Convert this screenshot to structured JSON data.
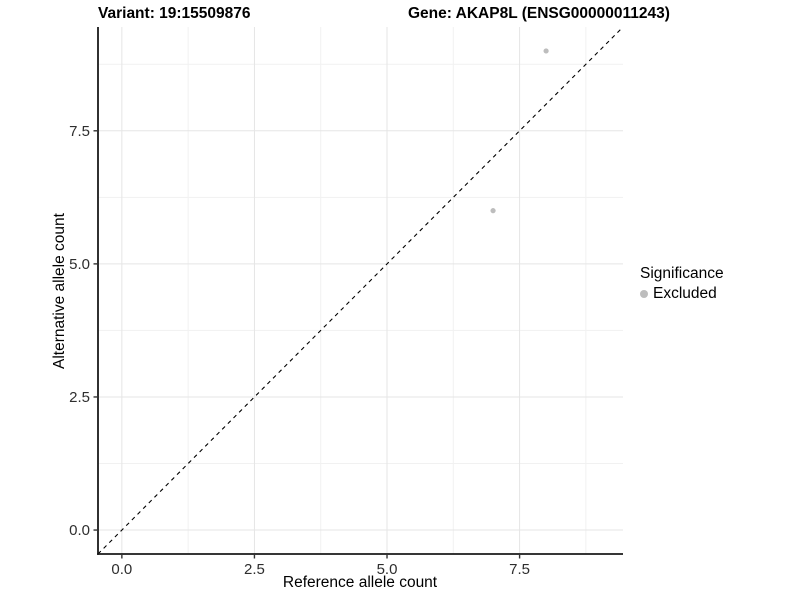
{
  "chart_data": {
    "type": "scatter",
    "title_left": "Variant: 19:15509876",
    "title_right": "Gene: AKAP8L (ENSG00000011243)",
    "xlabel": "Reference allele count",
    "ylabel": "Alternative allele count",
    "xlim": [
      -0.45,
      9.45
    ],
    "ylim": [
      -0.45,
      9.45
    ],
    "x_ticks": {
      "values": [
        0,
        2.5,
        5,
        7.5
      ],
      "labels": [
        "0.0",
        "2.5",
        "5.0",
        "7.5"
      ]
    },
    "y_ticks": {
      "values": [
        0,
        2.5,
        5,
        7.5
      ],
      "labels": [
        "0.0",
        "2.5",
        "5.0",
        "7.5"
      ]
    },
    "minor_tick_values": [
      1.25,
      3.75,
      6.25,
      8.75
    ],
    "grid": true,
    "points": [
      {
        "x": 7,
        "y": 6,
        "significance": "Excluded"
      },
      {
        "x": 8,
        "y": 9,
        "significance": "Excluded"
      }
    ],
    "point_color": "#bdbdbd",
    "point_radius": 2.6,
    "reference_line": {
      "slope": 1,
      "intercept": 0,
      "style": "dashed",
      "color": "#000000"
    },
    "legend": {
      "title": "Significance",
      "position": "right",
      "items": [
        {
          "label": "Excluded",
          "color": "#bdbdbd"
        }
      ]
    },
    "colors": {
      "background": "#ffffff",
      "axis_line": "#1a1a1a",
      "tick_mark": "#333333",
      "tick_label": "#2e2e2e",
      "grid_major": "#e5e5e5",
      "grid_minor": "#f1f1f1"
    }
  }
}
